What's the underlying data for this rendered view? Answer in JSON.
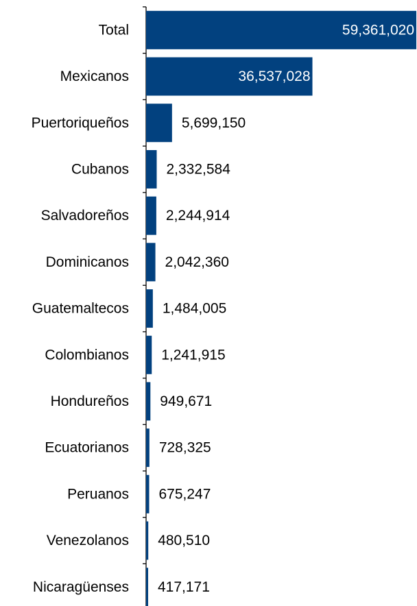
{
  "chart_data": {
    "type": "bar",
    "orientation": "horizontal",
    "categories": [
      "Total",
      "Mexicanos",
      "Puertoriqueños",
      "Cubanos",
      "Salvadoreños",
      "Dominicanos",
      "Guatemaltecos",
      "Colombianos",
      "Hondureños",
      "Ecuatorianos",
      "Peruanos",
      "Venezolanos",
      "Nicaragüenses"
    ],
    "values": [
      59361020,
      36537028,
      5699150,
      2332584,
      2244914,
      2042360,
      1484005,
      1241915,
      949671,
      728325,
      675247,
      480510,
      417171
    ],
    "value_labels": [
      "59,361,020",
      "36,537,028",
      "5,699,150",
      "2,332,584",
      "2,244,914",
      "2,042,360",
      "1,484,005",
      "1,241,915",
      "949,671",
      "728,325",
      "675,247",
      "480,510",
      "417,171"
    ],
    "inside_label_threshold": 10000000,
    "xlim": [
      0,
      59361020
    ],
    "grid": false,
    "legend": "none",
    "title": "",
    "xlabel": "",
    "ylabel": ""
  },
  "colors": {
    "bar": "#02417F",
    "axis": "#000000",
    "label_inside": "#ffffff",
    "label_outside": "#000000"
  }
}
